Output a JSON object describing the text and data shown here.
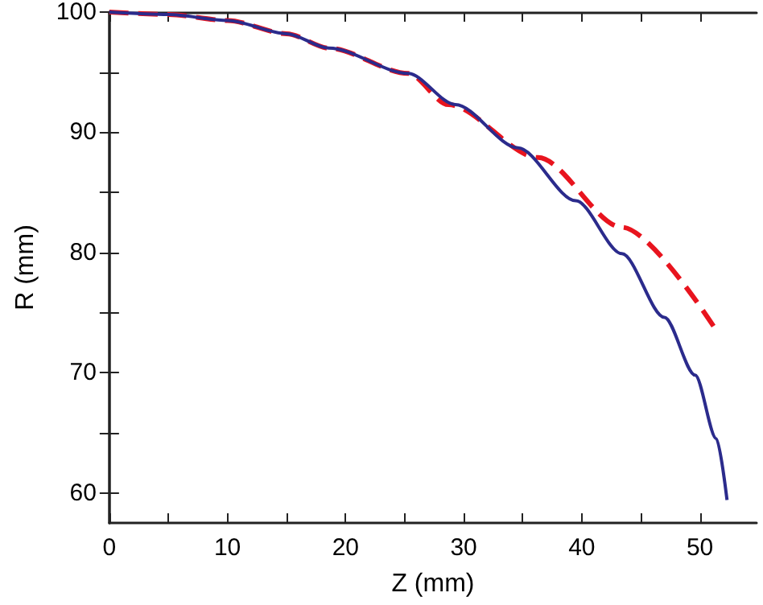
{
  "chart_data": {
    "type": "line",
    "xlabel": "Z (mm)",
    "ylabel": "R (mm)",
    "xlim": [
      0,
      54.8
    ],
    "ylim": [
      57.5,
      100
    ],
    "xticks": [
      0,
      {
        "value": 5,
        "label": null
      },
      10,
      {
        "value": 15,
        "label": null
      },
      20,
      {
        "value": 25,
        "label": null
      },
      30,
      {
        "value": 35,
        "label": null
      },
      40,
      {
        "value": 45,
        "label": null
      },
      50
    ],
    "yticks": [
      {
        "value": 60,
        "label": "60"
      },
      {
        "value": 65,
        "label": null
      },
      70,
      {
        "value": 75,
        "label": null
      },
      80,
      {
        "value": 85,
        "label": null
      },
      90,
      {
        "value": 95,
        "label": null
      },
      100
    ],
    "grid": false,
    "marker": "none",
    "series": [
      {
        "color": "#e8141e",
        "line_style": "dashed",
        "x": [
          0,
          5,
          10,
          15,
          18.6,
          25.3,
          28.7,
          36.3,
          43.4,
          51.4
        ],
        "values": [
          100,
          99.8,
          99.3,
          98.2,
          97.0,
          94.9,
          92.3,
          87.9,
          82.1,
          73.5
        ]
      },
      {
        "color": "#2b2b8c",
        "line_style": "solid",
        "x": [
          0,
          5,
          10,
          15,
          18.6,
          25.3,
          29.3,
          34.6,
          39.5,
          43.4,
          47.0,
          49.6,
          51.4,
          52.3
        ],
        "values": [
          100,
          99.8,
          99.3,
          98.2,
          97.0,
          94.9,
          92.3,
          88.7,
          84.3,
          79.9,
          74.6,
          69.8,
          64.5,
          59.4
        ]
      }
    ]
  }
}
